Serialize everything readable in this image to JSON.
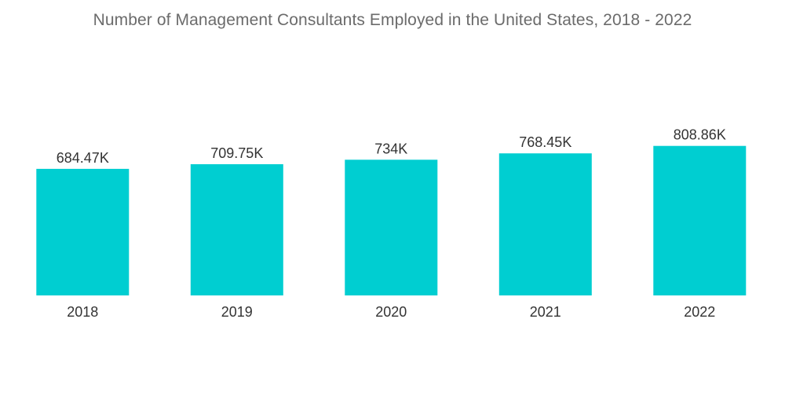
{
  "chart_data": {
    "type": "bar",
    "title": "Number of Management Consultants Employed in the United States, 2018 - 2022",
    "categories": [
      "2018",
      "2019",
      "2020",
      "2021",
      "2022"
    ],
    "values": [
      684.47,
      709.75,
      734,
      768.45,
      808.86
    ],
    "value_labels": [
      "684.47K",
      "709.75K",
      "734K",
      "768.45K",
      "808.86K"
    ],
    "bar_color": "#00ced1",
    "grid": false,
    "legend": "none",
    "ylim": [
      0,
      850
    ]
  }
}
